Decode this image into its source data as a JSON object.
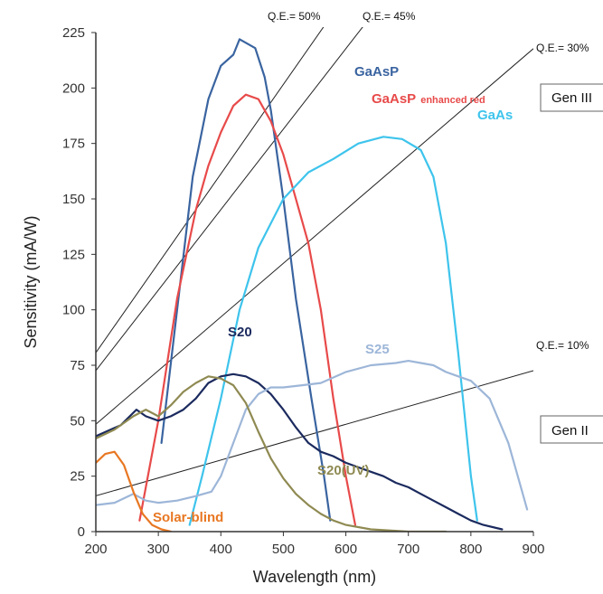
{
  "chart_data": {
    "type": "line",
    "xlabel": "Wavelength (nm)",
    "ylabel": "Sensitivity (mA/W)",
    "xlim": [
      200,
      900
    ],
    "ylim": [
      0,
      225
    ],
    "x_ticks": [
      "200",
      "300",
      "400",
      "500",
      "600",
      "700",
      "800",
      "900"
    ],
    "y_ticks": [
      "0",
      "25",
      "50",
      "75",
      "100",
      "125",
      "150",
      "175",
      "200",
      "225"
    ],
    "grid": false,
    "series": [
      {
        "name": "GaAsP",
        "color": "#3a64a0",
        "points": [
          [
            305,
            40
          ],
          [
            330,
            100
          ],
          [
            355,
            160
          ],
          [
            380,
            195
          ],
          [
            400,
            210
          ],
          [
            420,
            215
          ],
          [
            430,
            222
          ],
          [
            455,
            218
          ],
          [
            470,
            205
          ],
          [
            480,
            190
          ],
          [
            500,
            150
          ],
          [
            520,
            105
          ],
          [
            545,
            60
          ],
          [
            565,
            25
          ],
          [
            575,
            5
          ]
        ]
      },
      {
        "name": "GaAsP",
        "name_suffix": "enhanced red",
        "color": "#e84a4a",
        "points": [
          [
            270,
            5
          ],
          [
            300,
            50
          ],
          [
            330,
            105
          ],
          [
            360,
            145
          ],
          [
            380,
            165
          ],
          [
            400,
            180
          ],
          [
            420,
            192
          ],
          [
            440,
            197
          ],
          [
            460,
            195
          ],
          [
            480,
            185
          ],
          [
            500,
            170
          ],
          [
            520,
            150
          ],
          [
            540,
            130
          ],
          [
            560,
            100
          ],
          [
            580,
            60
          ],
          [
            600,
            25
          ],
          [
            615,
            3
          ]
        ]
      },
      {
        "name": "GaAs",
        "color": "#3ec4ec",
        "points": [
          [
            350,
            3
          ],
          [
            370,
            25
          ],
          [
            400,
            60
          ],
          [
            430,
            100
          ],
          [
            460,
            128
          ],
          [
            500,
            150
          ],
          [
            540,
            162
          ],
          [
            580,
            168
          ],
          [
            620,
            175
          ],
          [
            660,
            178
          ],
          [
            690,
            177
          ],
          [
            720,
            172
          ],
          [
            740,
            160
          ],
          [
            760,
            130
          ],
          [
            780,
            80
          ],
          [
            800,
            25
          ],
          [
            810,
            5
          ]
        ]
      },
      {
        "name": "S20",
        "color": "#1b2a5e",
        "points": [
          [
            200,
            43
          ],
          [
            240,
            48
          ],
          [
            265,
            55
          ],
          [
            280,
            52
          ],
          [
            300,
            50
          ],
          [
            320,
            52
          ],
          [
            340,
            55
          ],
          [
            360,
            60
          ],
          [
            380,
            67
          ],
          [
            400,
            70
          ],
          [
            420,
            71
          ],
          [
            440,
            70
          ],
          [
            460,
            67
          ],
          [
            480,
            62
          ],
          [
            500,
            55
          ],
          [
            520,
            47
          ],
          [
            540,
            40
          ],
          [
            560,
            36
          ],
          [
            580,
            34
          ],
          [
            600,
            31
          ],
          [
            620,
            29
          ],
          [
            640,
            27
          ],
          [
            660,
            25
          ],
          [
            680,
            22
          ],
          [
            700,
            20
          ],
          [
            720,
            17
          ],
          [
            740,
            14
          ],
          [
            760,
            11
          ],
          [
            780,
            8
          ],
          [
            800,
            5
          ],
          [
            820,
            3
          ],
          [
            850,
            1
          ]
        ]
      },
      {
        "name": "S25",
        "color": "#9db6d8",
        "points": [
          [
            200,
            12
          ],
          [
            230,
            13
          ],
          [
            260,
            17
          ],
          [
            280,
            14
          ],
          [
            300,
            13
          ],
          [
            330,
            14
          ],
          [
            360,
            16
          ],
          [
            385,
            18
          ],
          [
            400,
            25
          ],
          [
            420,
            40
          ],
          [
            440,
            55
          ],
          [
            460,
            62
          ],
          [
            480,
            65
          ],
          [
            500,
            65
          ],
          [
            530,
            66
          ],
          [
            560,
            67
          ],
          [
            600,
            72
          ],
          [
            640,
            75
          ],
          [
            680,
            76
          ],
          [
            700,
            77
          ],
          [
            720,
            76
          ],
          [
            740,
            75
          ],
          [
            760,
            72
          ],
          [
            780,
            70
          ],
          [
            800,
            68
          ],
          [
            830,
            60
          ],
          [
            860,
            40
          ],
          [
            880,
            20
          ],
          [
            890,
            10
          ]
        ]
      },
      {
        "name": "S20(UV)",
        "color": "#8f8a52",
        "points": [
          [
            200,
            42
          ],
          [
            230,
            46
          ],
          [
            260,
            52
          ],
          [
            280,
            55
          ],
          [
            300,
            52
          ],
          [
            320,
            57
          ],
          [
            340,
            63
          ],
          [
            360,
            67
          ],
          [
            380,
            70
          ],
          [
            400,
            69
          ],
          [
            420,
            66
          ],
          [
            440,
            58
          ],
          [
            460,
            45
          ],
          [
            480,
            33
          ],
          [
            500,
            24
          ],
          [
            520,
            17
          ],
          [
            540,
            12
          ],
          [
            560,
            8
          ],
          [
            580,
            5
          ],
          [
            600,
            3
          ],
          [
            640,
            1
          ],
          [
            700,
            0
          ],
          [
            760,
            0
          ]
        ]
      },
      {
        "name": "Solar-blind",
        "color": "#e87722",
        "points": [
          [
            200,
            31
          ],
          [
            215,
            35
          ],
          [
            230,
            36
          ],
          [
            245,
            30
          ],
          [
            260,
            18
          ],
          [
            275,
            8
          ],
          [
            290,
            3
          ],
          [
            305,
            1
          ],
          [
            320,
            0
          ]
        ]
      }
    ],
    "qe_lines": [
      {
        "label": "Q.E.= 50%",
        "qe": 0.5
      },
      {
        "label": "Q.E.= 45%",
        "qe": 0.45
      },
      {
        "label": "Q.E.= 30%",
        "qe": 0.3
      },
      {
        "label": "Q.E.= 10%",
        "qe": 0.1
      }
    ],
    "annotations": [
      "Gen III",
      "Gen II"
    ]
  }
}
